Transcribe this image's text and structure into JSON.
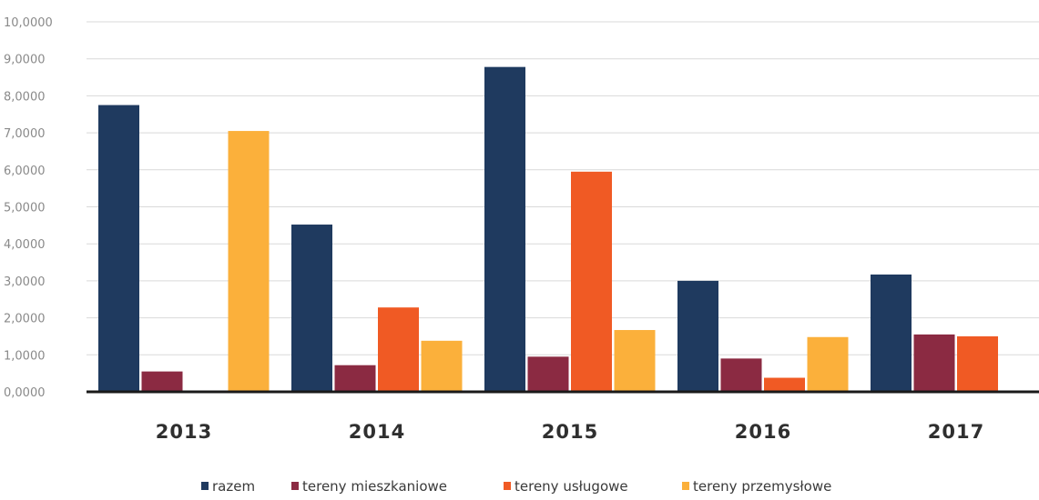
{
  "chart_data": {
    "type": "bar",
    "title": "",
    "xlabel": "",
    "ylabel": "",
    "categories": [
      "2013",
      "2014",
      "2015",
      "2016",
      "2017"
    ],
    "ylim": [
      0,
      10
    ],
    "yticks": [
      "0,0000",
      "1,0000",
      "2,0000",
      "3,0000",
      "4,0000",
      "5,0000",
      "6,0000",
      "7,0000",
      "8,0000",
      "9,0000",
      "10,0000"
    ],
    "grid": true,
    "legend_position": "bottom",
    "series": [
      {
        "name": "razem",
        "color": "#1f3a5f",
        "values": [
          7.75,
          4.52,
          8.78,
          3.0,
          3.17
        ]
      },
      {
        "name": "tereny mieszkaniowe",
        "color": "#8b2a42",
        "values": [
          0.55,
          0.72,
          0.95,
          0.9,
          1.55
        ]
      },
      {
        "name": "tereny usługowe",
        "color": "#f05a24",
        "values": [
          0,
          2.28,
          5.95,
          0.38,
          1.5
        ]
      },
      {
        "name": "tereny przemysłowe",
        "color": "#fbb03b",
        "values": [
          7.05,
          1.38,
          1.67,
          1.48,
          0
        ]
      }
    ]
  }
}
